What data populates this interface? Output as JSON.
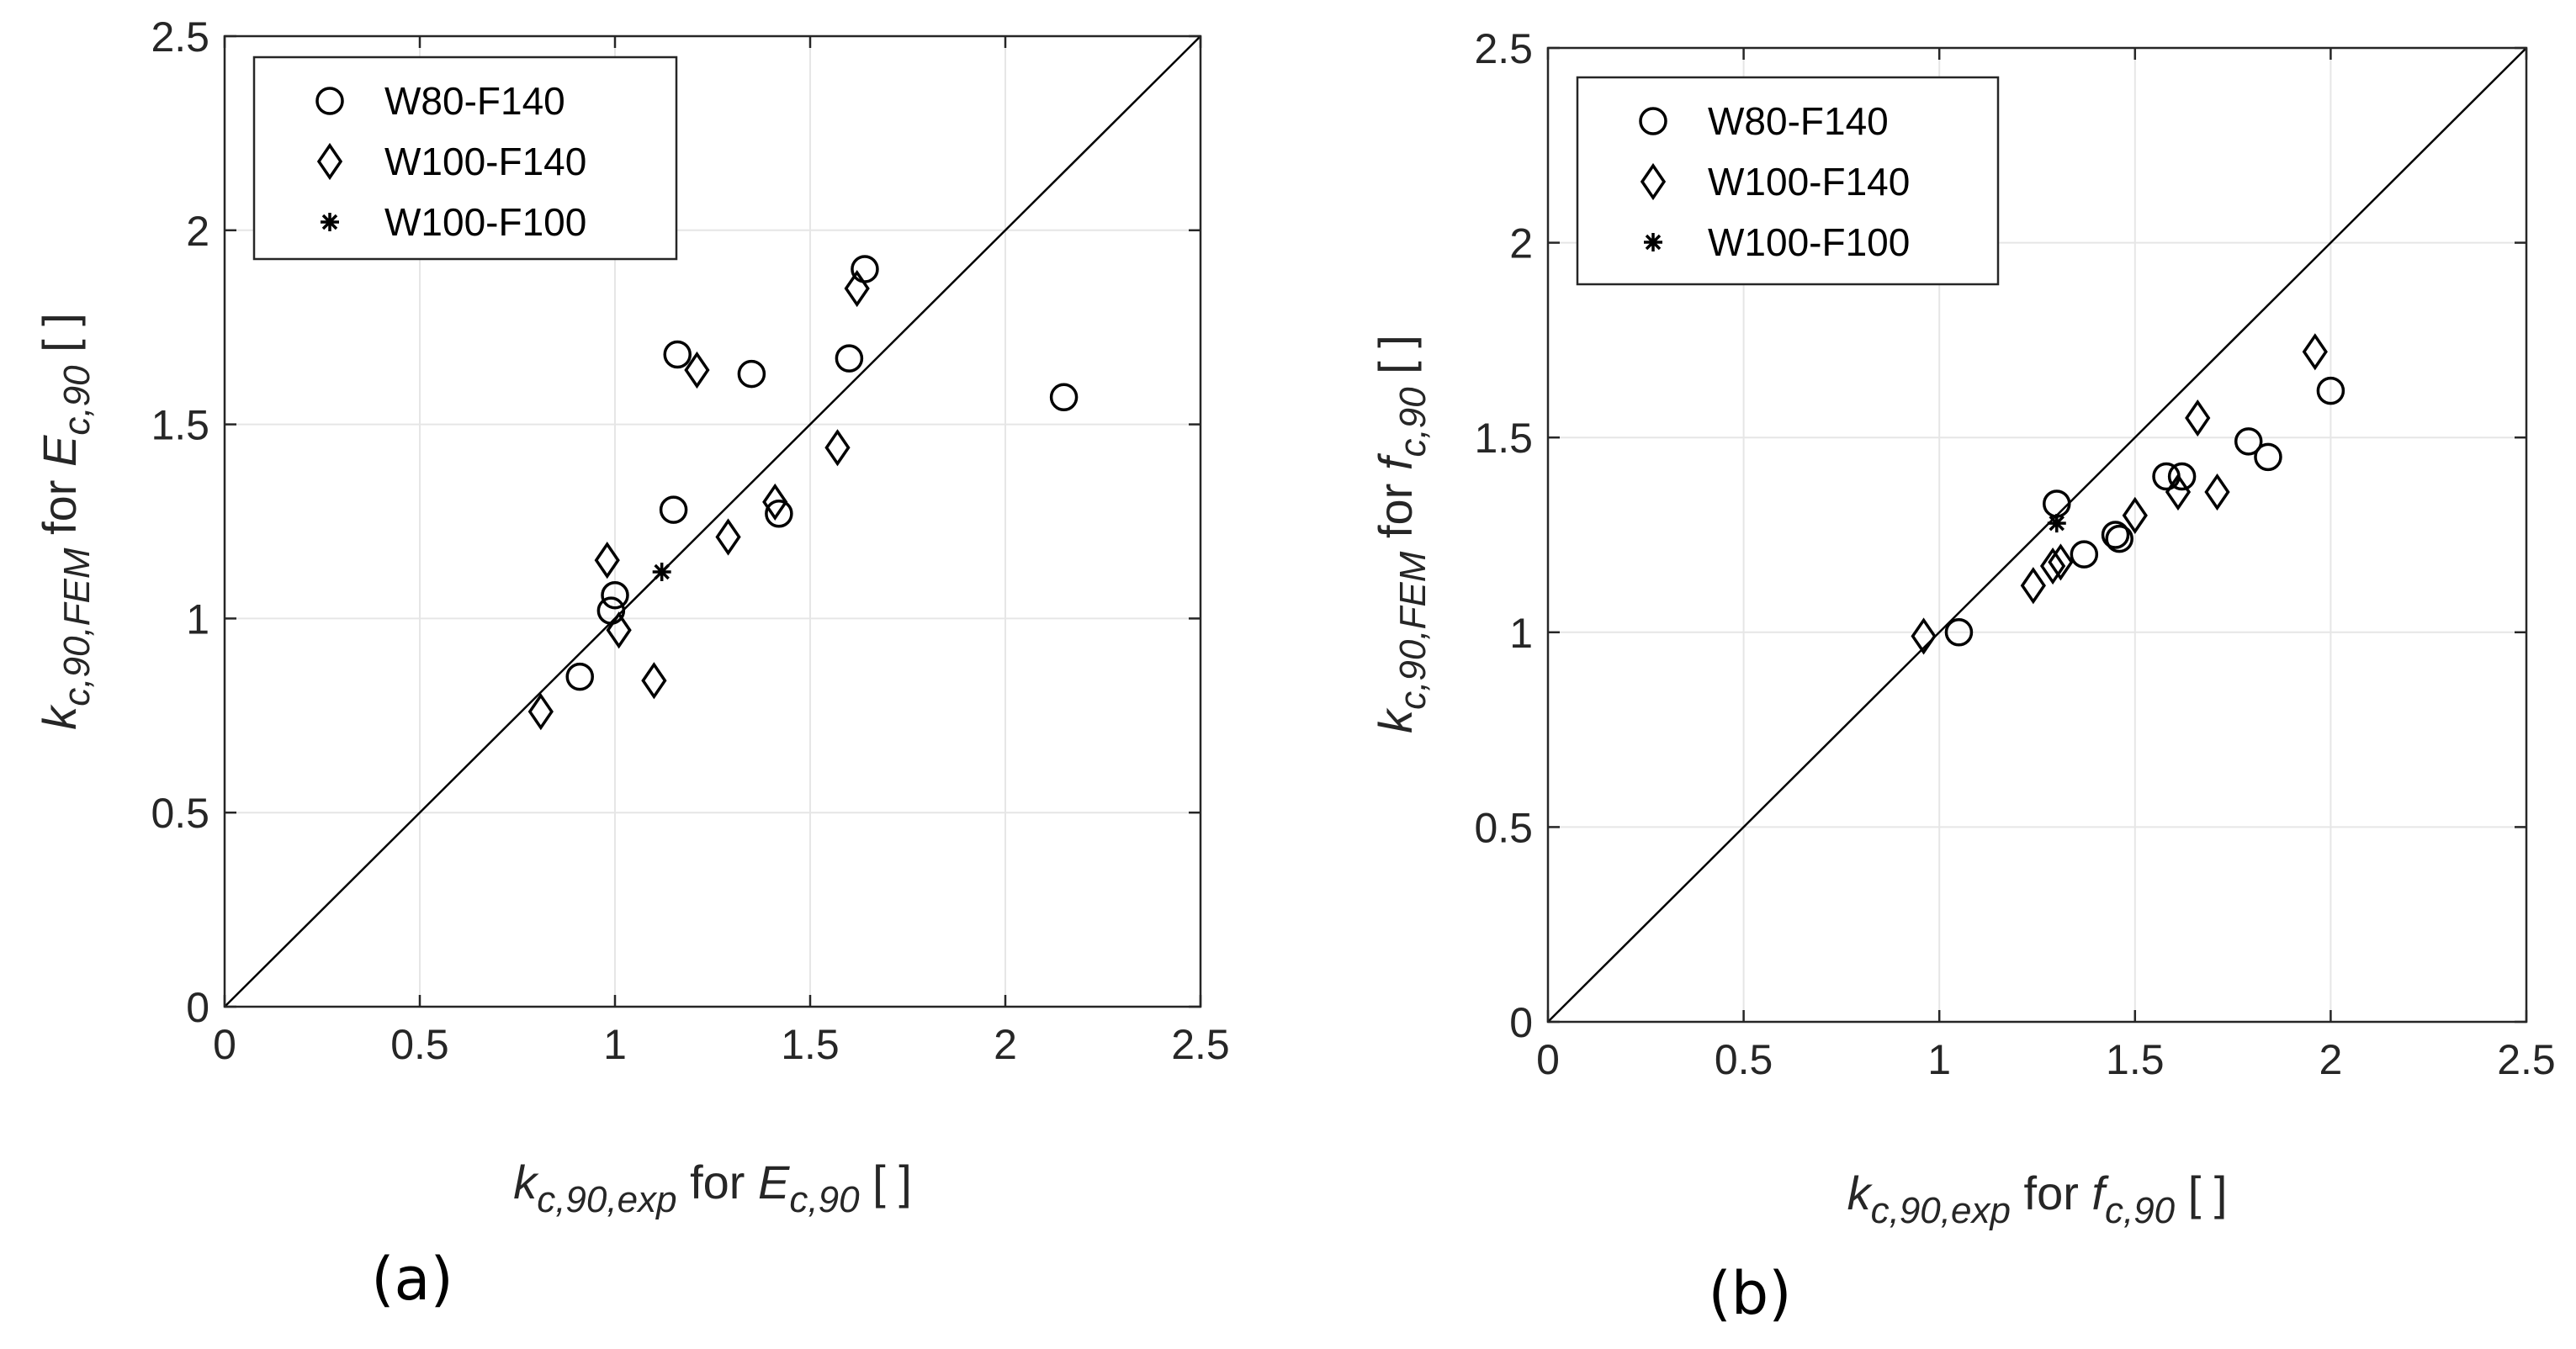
{
  "chart_data": [
    {
      "type": "scatter",
      "panel_label": "(a)",
      "xlabel": {
        "sym": "k",
        "sub": "c,90,exp",
        "mid": " for ",
        "sym2": "E",
        "sub2": "c,90",
        "unit": " [ ]"
      },
      "ylabel": {
        "sym": "k",
        "sub": "c,90,FEM",
        "mid": " for ",
        "sym2": "E",
        "sub2": "c,90",
        "unit": " [ ]"
      },
      "xlim": [
        0,
        2.5
      ],
      "ylim": [
        0,
        2.5
      ],
      "xticks": [
        0,
        0.5,
        1,
        1.5,
        2,
        2.5
      ],
      "yticks": [
        0,
        0.5,
        1,
        1.5,
        2,
        2.5
      ],
      "xtick_labels": [
        "0",
        "0.5",
        "1",
        "1.5",
        "2",
        "2.5"
      ],
      "ytick_labels": [
        "0",
        "0.5",
        "1",
        "1.5",
        "2",
        "2.5"
      ],
      "grid": true,
      "reference_line": "y = x",
      "legend_position": "top-left",
      "series": [
        {
          "name": "W80-F140",
          "marker": "circle",
          "points": [
            [
              0.91,
              0.85
            ],
            [
              0.99,
              1.02
            ],
            [
              1.0,
              1.06
            ],
            [
              1.15,
              1.28
            ],
            [
              1.16,
              1.68
            ],
            [
              1.35,
              1.63
            ],
            [
              1.42,
              1.27
            ],
            [
              1.6,
              1.67
            ],
            [
              1.64,
              1.9
            ],
            [
              2.15,
              1.57
            ]
          ]
        },
        {
          "name": "W100-F140",
          "marker": "diamond",
          "points": [
            [
              0.81,
              0.76
            ],
            [
              0.98,
              1.15
            ],
            [
              1.01,
              0.97
            ],
            [
              1.1,
              0.84
            ],
            [
              1.21,
              1.64
            ],
            [
              1.29,
              1.21
            ],
            [
              1.41,
              1.3
            ],
            [
              1.57,
              1.44
            ],
            [
              1.62,
              1.85
            ]
          ]
        },
        {
          "name": "W100-F100",
          "marker": "asterisk",
          "points": [
            [
              1.12,
              1.12
            ]
          ]
        }
      ]
    },
    {
      "type": "scatter",
      "panel_label": "(b)",
      "xlabel": {
        "sym": "k",
        "sub": "c,90,exp",
        "mid": " for ",
        "sym2": "f",
        "sub2": "c,90",
        "unit": " [ ]"
      },
      "ylabel": {
        "sym": "k",
        "sub": "c,90,FEM",
        "mid": " for ",
        "sym2": "f",
        "sub2": "c,90",
        "unit": " [ ]"
      },
      "xlim": [
        0,
        2.5
      ],
      "ylim": [
        0,
        2.5
      ],
      "xticks": [
        0,
        0.5,
        1,
        1.5,
        2,
        2.5
      ],
      "yticks": [
        0,
        0.5,
        1,
        1.5,
        2,
        2.5
      ],
      "xtick_labels": [
        "0",
        "0.5",
        "1",
        "1.5",
        "2",
        "2.5"
      ],
      "ytick_labels": [
        "0",
        "0.5",
        "1",
        "1.5",
        "2",
        "2.5"
      ],
      "grid": true,
      "reference_line": "y = x",
      "legend_position": "top-left",
      "series": [
        {
          "name": "W80-F140",
          "marker": "circle",
          "points": [
            [
              1.05,
              1.0
            ],
            [
              1.3,
              1.33
            ],
            [
              1.37,
              1.2
            ],
            [
              1.45,
              1.25
            ],
            [
              1.46,
              1.24
            ],
            [
              1.58,
              1.4
            ],
            [
              1.62,
              1.4
            ],
            [
              1.79,
              1.49
            ],
            [
              1.84,
              1.45
            ],
            [
              2.0,
              1.62
            ]
          ]
        },
        {
          "name": "W100-F140",
          "marker": "diamond",
          "points": [
            [
              0.96,
              0.99
            ],
            [
              1.24,
              1.12
            ],
            [
              1.29,
              1.17
            ],
            [
              1.31,
              1.18
            ],
            [
              1.5,
              1.3
            ],
            [
              1.61,
              1.36
            ],
            [
              1.66,
              1.55
            ],
            [
              1.71,
              1.36
            ],
            [
              1.96,
              1.72
            ]
          ]
        },
        {
          "name": "W100-F100",
          "marker": "asterisk",
          "points": [
            [
              1.3,
              1.28
            ]
          ]
        }
      ]
    }
  ]
}
